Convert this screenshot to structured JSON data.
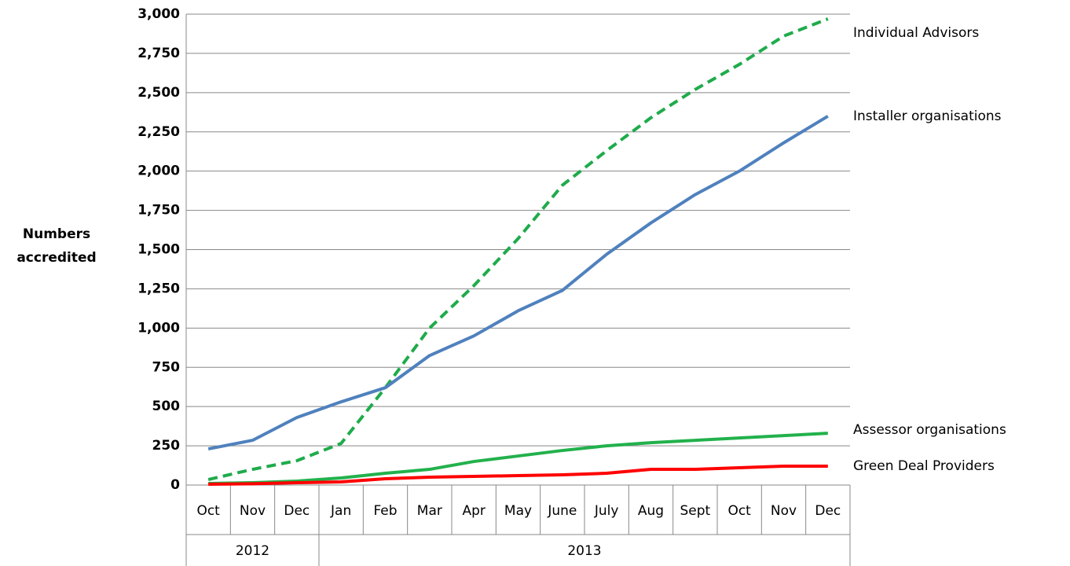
{
  "chart_data": {
    "type": "line",
    "ylabel": [
      "Numbers",
      "accredited"
    ],
    "categories": [
      "Oct",
      "Nov",
      "Dec",
      "Jan",
      "Feb",
      "Mar",
      "Apr",
      "May",
      "June",
      "July",
      "Aug",
      "Sept",
      "Oct",
      "Nov",
      "Dec"
    ],
    "groups": [
      {
        "label": "2012",
        "count": 3
      },
      {
        "label": "2013",
        "count": 12
      }
    ],
    "ylim": [
      0,
      3000
    ],
    "yticks": [
      0,
      250,
      500,
      750,
      {
        "value": 1000,
        "label": "1,000"
      },
      {
        "value": 1250,
        "label": "1,250"
      },
      {
        "value": 1500,
        "label": "1,500"
      },
      {
        "value": 1750,
        "label": "1,750"
      },
      {
        "value": 2000,
        "label": "2,000"
      },
      {
        "value": 2250,
        "label": "2,250"
      },
      {
        "value": 2500,
        "label": "2,500"
      },
      {
        "value": 2750,
        "label": "2,750"
      },
      {
        "value": 3000,
        "label": "3,000"
      }
    ],
    "grid": true,
    "series": [
      {
        "name": "Individual Advisors",
        "color": "#1fab4b",
        "dashed": true,
        "values": [
          35,
          100,
          155,
          265,
          620,
          1000,
          1270,
          1570,
          1910,
          2130,
          2340,
          2520,
          2680,
          2860,
          2970
        ]
      },
      {
        "name": "Installer organisations",
        "color": "#4f81bd",
        "dashed": false,
        "values": [
          230,
          285,
          430,
          530,
          620,
          825,
          950,
          1110,
          1240,
          1470,
          1670,
          1850,
          2000,
          2180,
          2350
        ]
      },
      {
        "name": "Assessor organisations",
        "color": "#22b14c",
        "dashed": false,
        "values": [
          10,
          15,
          25,
          45,
          75,
          100,
          150,
          185,
          220,
          250,
          270,
          285,
          300,
          315,
          330
        ]
      },
      {
        "name": "Green Deal Providers",
        "color": "#ff0000",
        "dashed": false,
        "values": [
          5,
          8,
          15,
          20,
          40,
          50,
          55,
          60,
          65,
          75,
          100,
          100,
          110,
          120,
          120
        ]
      }
    ]
  }
}
